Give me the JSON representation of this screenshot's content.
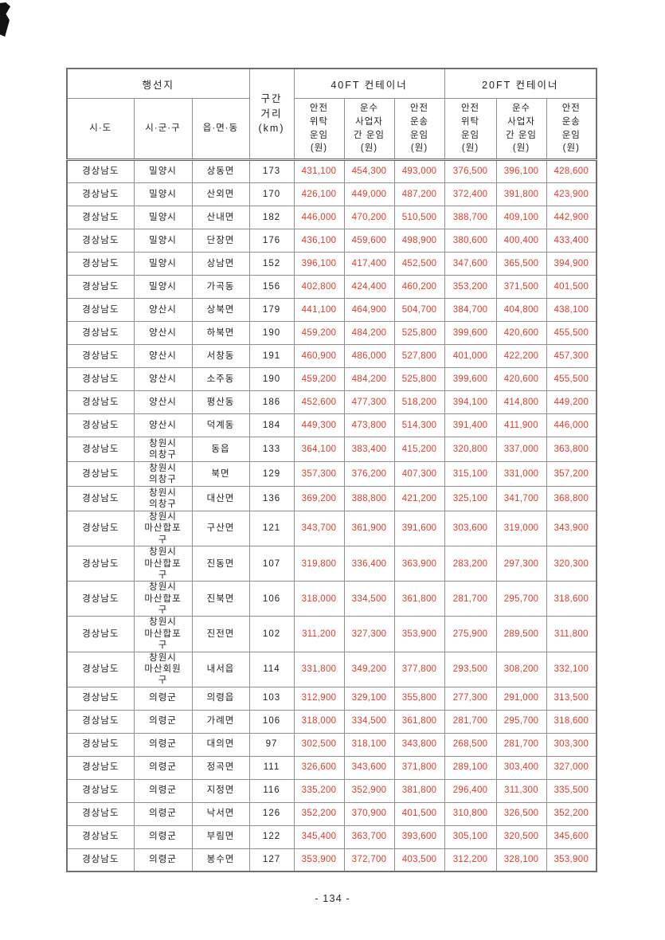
{
  "colors": {
    "fare_text": "#e03a2a"
  },
  "footer": {
    "page_label": "- 134 -"
  },
  "table": {
    "headers": {
      "destination_group": "행선지",
      "distance": "구간\n거리\n(km)",
      "container_40ft": "40FT 컨테이너",
      "container_20ft": "20FT 컨테이너",
      "sido": "시·도",
      "sigungu": "시·군·구",
      "eupmyeondong": "읍·면·동",
      "fare_subheaders": [
        "안전\n위탁\n운임\n(원)",
        "운수\n사업자\n간 운임\n(원)",
        "안전\n운송\n운임\n(원)"
      ]
    },
    "rows": [
      {
        "sido": "경상남도",
        "sigungu": "밀양시",
        "emd": "상동면",
        "km": "173",
        "fares": [
          "431,100",
          "454,300",
          "493,000",
          "376,500",
          "396,100",
          "428,600"
        ]
      },
      {
        "sido": "경상남도",
        "sigungu": "밀양시",
        "emd": "산외면",
        "km": "170",
        "fares": [
          "426,100",
          "449,000",
          "487,200",
          "372,400",
          "391,800",
          "423,900"
        ]
      },
      {
        "sido": "경상남도",
        "sigungu": "밀양시",
        "emd": "산내면",
        "km": "182",
        "fares": [
          "446,000",
          "470,200",
          "510,500",
          "388,700",
          "409,100",
          "442,900"
        ]
      },
      {
        "sido": "경상남도",
        "sigungu": "밀양시",
        "emd": "단장면",
        "km": "176",
        "fares": [
          "436,100",
          "459,600",
          "498,900",
          "380,600",
          "400,400",
          "433,400"
        ]
      },
      {
        "sido": "경상남도",
        "sigungu": "밀양시",
        "emd": "상남면",
        "km": "152",
        "fares": [
          "396,100",
          "417,400",
          "452,500",
          "347,600",
          "365,500",
          "394,900"
        ]
      },
      {
        "sido": "경상남도",
        "sigungu": "밀양시",
        "emd": "가곡동",
        "km": "156",
        "fares": [
          "402,800",
          "424,400",
          "460,200",
          "353,200",
          "371,500",
          "401,500"
        ]
      },
      {
        "sido": "경상남도",
        "sigungu": "양산시",
        "emd": "상북면",
        "km": "179",
        "fares": [
          "441,100",
          "464,900",
          "504,700",
          "384,700",
          "404,800",
          "438,100"
        ]
      },
      {
        "sido": "경상남도",
        "sigungu": "양산시",
        "emd": "하북면",
        "km": "190",
        "fares": [
          "459,200",
          "484,200",
          "525,800",
          "399,600",
          "420,600",
          "455,500"
        ]
      },
      {
        "sido": "경상남도",
        "sigungu": "양산시",
        "emd": "서창동",
        "km": "191",
        "fares": [
          "460,900",
          "486,000",
          "527,800",
          "401,000",
          "422,200",
          "457,300"
        ]
      },
      {
        "sido": "경상남도",
        "sigungu": "양산시",
        "emd": "소주동",
        "km": "190",
        "fares": [
          "459,200",
          "484,200",
          "525,800",
          "399,600",
          "420,600",
          "455,500"
        ]
      },
      {
        "sido": "경상남도",
        "sigungu": "양산시",
        "emd": "평산동",
        "km": "186",
        "fares": [
          "452,600",
          "477,300",
          "518,200",
          "394,100",
          "414,800",
          "449,200"
        ]
      },
      {
        "sido": "경상남도",
        "sigungu": "양산시",
        "emd": "덕계동",
        "km": "184",
        "fares": [
          "449,300",
          "473,800",
          "514,300",
          "391,400",
          "411,900",
          "446,000"
        ]
      },
      {
        "sido": "경상남도",
        "sigungu": "창원시\n의창구",
        "emd": "동읍",
        "km": "133",
        "fares": [
          "364,100",
          "383,400",
          "415,200",
          "320,800",
          "337,000",
          "363,800"
        ]
      },
      {
        "sido": "경상남도",
        "sigungu": "창원시\n의창구",
        "emd": "북면",
        "km": "129",
        "fares": [
          "357,300",
          "376,200",
          "407,300",
          "315,100",
          "331,000",
          "357,200"
        ]
      },
      {
        "sido": "경상남도",
        "sigungu": "창원시\n의창구",
        "emd": "대산면",
        "km": "136",
        "fares": [
          "369,200",
          "388,800",
          "421,200",
          "325,100",
          "341,700",
          "368,800"
        ]
      },
      {
        "sido": "경상남도",
        "sigungu": "창원시\n마산합포\n구",
        "emd": "구산면",
        "km": "121",
        "fares": [
          "343,700",
          "361,900",
          "391,600",
          "303,600",
          "319,000",
          "343,900"
        ]
      },
      {
        "sido": "경상남도",
        "sigungu": "창원시\n마산합포\n구",
        "emd": "진동면",
        "km": "107",
        "fares": [
          "319,800",
          "336,400",
          "363,900",
          "283,200",
          "297,300",
          "320,300"
        ]
      },
      {
        "sido": "경상남도",
        "sigungu": "창원시\n마산합포\n구",
        "emd": "진북면",
        "km": "106",
        "fares": [
          "318,000",
          "334,500",
          "361,800",
          "281,700",
          "295,700",
          "318,600"
        ]
      },
      {
        "sido": "경상남도",
        "sigungu": "창원시\n마산합포\n구",
        "emd": "진전면",
        "km": "102",
        "fares": [
          "311,200",
          "327,300",
          "353,900",
          "275,900",
          "289,500",
          "311,800"
        ]
      },
      {
        "sido": "경상남도",
        "sigungu": "창원시\n마산회원\n구",
        "emd": "내서읍",
        "km": "114",
        "fares": [
          "331,800",
          "349,200",
          "377,800",
          "293,500",
          "308,200",
          "332,100"
        ]
      },
      {
        "sido": "경상남도",
        "sigungu": "의령군",
        "emd": "의령읍",
        "km": "103",
        "fares": [
          "312,900",
          "329,100",
          "355,800",
          "277,300",
          "291,000",
          "313,500"
        ]
      },
      {
        "sido": "경상남도",
        "sigungu": "의령군",
        "emd": "가례면",
        "km": "106",
        "fares": [
          "318,000",
          "334,500",
          "361,800",
          "281,700",
          "295,700",
          "318,600"
        ]
      },
      {
        "sido": "경상남도",
        "sigungu": "의령군",
        "emd": "대의면",
        "km": "97",
        "fares": [
          "302,500",
          "318,100",
          "343,800",
          "268,500",
          "281,700",
          "303,300"
        ]
      },
      {
        "sido": "경상남도",
        "sigungu": "의령군",
        "emd": "정곡면",
        "km": "111",
        "fares": [
          "326,600",
          "343,600",
          "371,800",
          "289,100",
          "303,400",
          "327,000"
        ]
      },
      {
        "sido": "경상남도",
        "sigungu": "의령군",
        "emd": "지정면",
        "km": "116",
        "fares": [
          "335,200",
          "352,900",
          "381,800",
          "296,400",
          "311,300",
          "335,500"
        ]
      },
      {
        "sido": "경상남도",
        "sigungu": "의령군",
        "emd": "낙서면",
        "km": "126",
        "fares": [
          "352,200",
          "370,900",
          "401,500",
          "310,800",
          "326,500",
          "352,200"
        ]
      },
      {
        "sido": "경상남도",
        "sigungu": "의령군",
        "emd": "부림면",
        "km": "122",
        "fares": [
          "345,400",
          "363,700",
          "393,600",
          "305,100",
          "320,500",
          "345,600"
        ]
      },
      {
        "sido": "경상남도",
        "sigungu": "의령군",
        "emd": "봉수면",
        "km": "127",
        "fares": [
          "353,900",
          "372,700",
          "403,500",
          "312,200",
          "328,100",
          "353,900"
        ]
      }
    ]
  }
}
